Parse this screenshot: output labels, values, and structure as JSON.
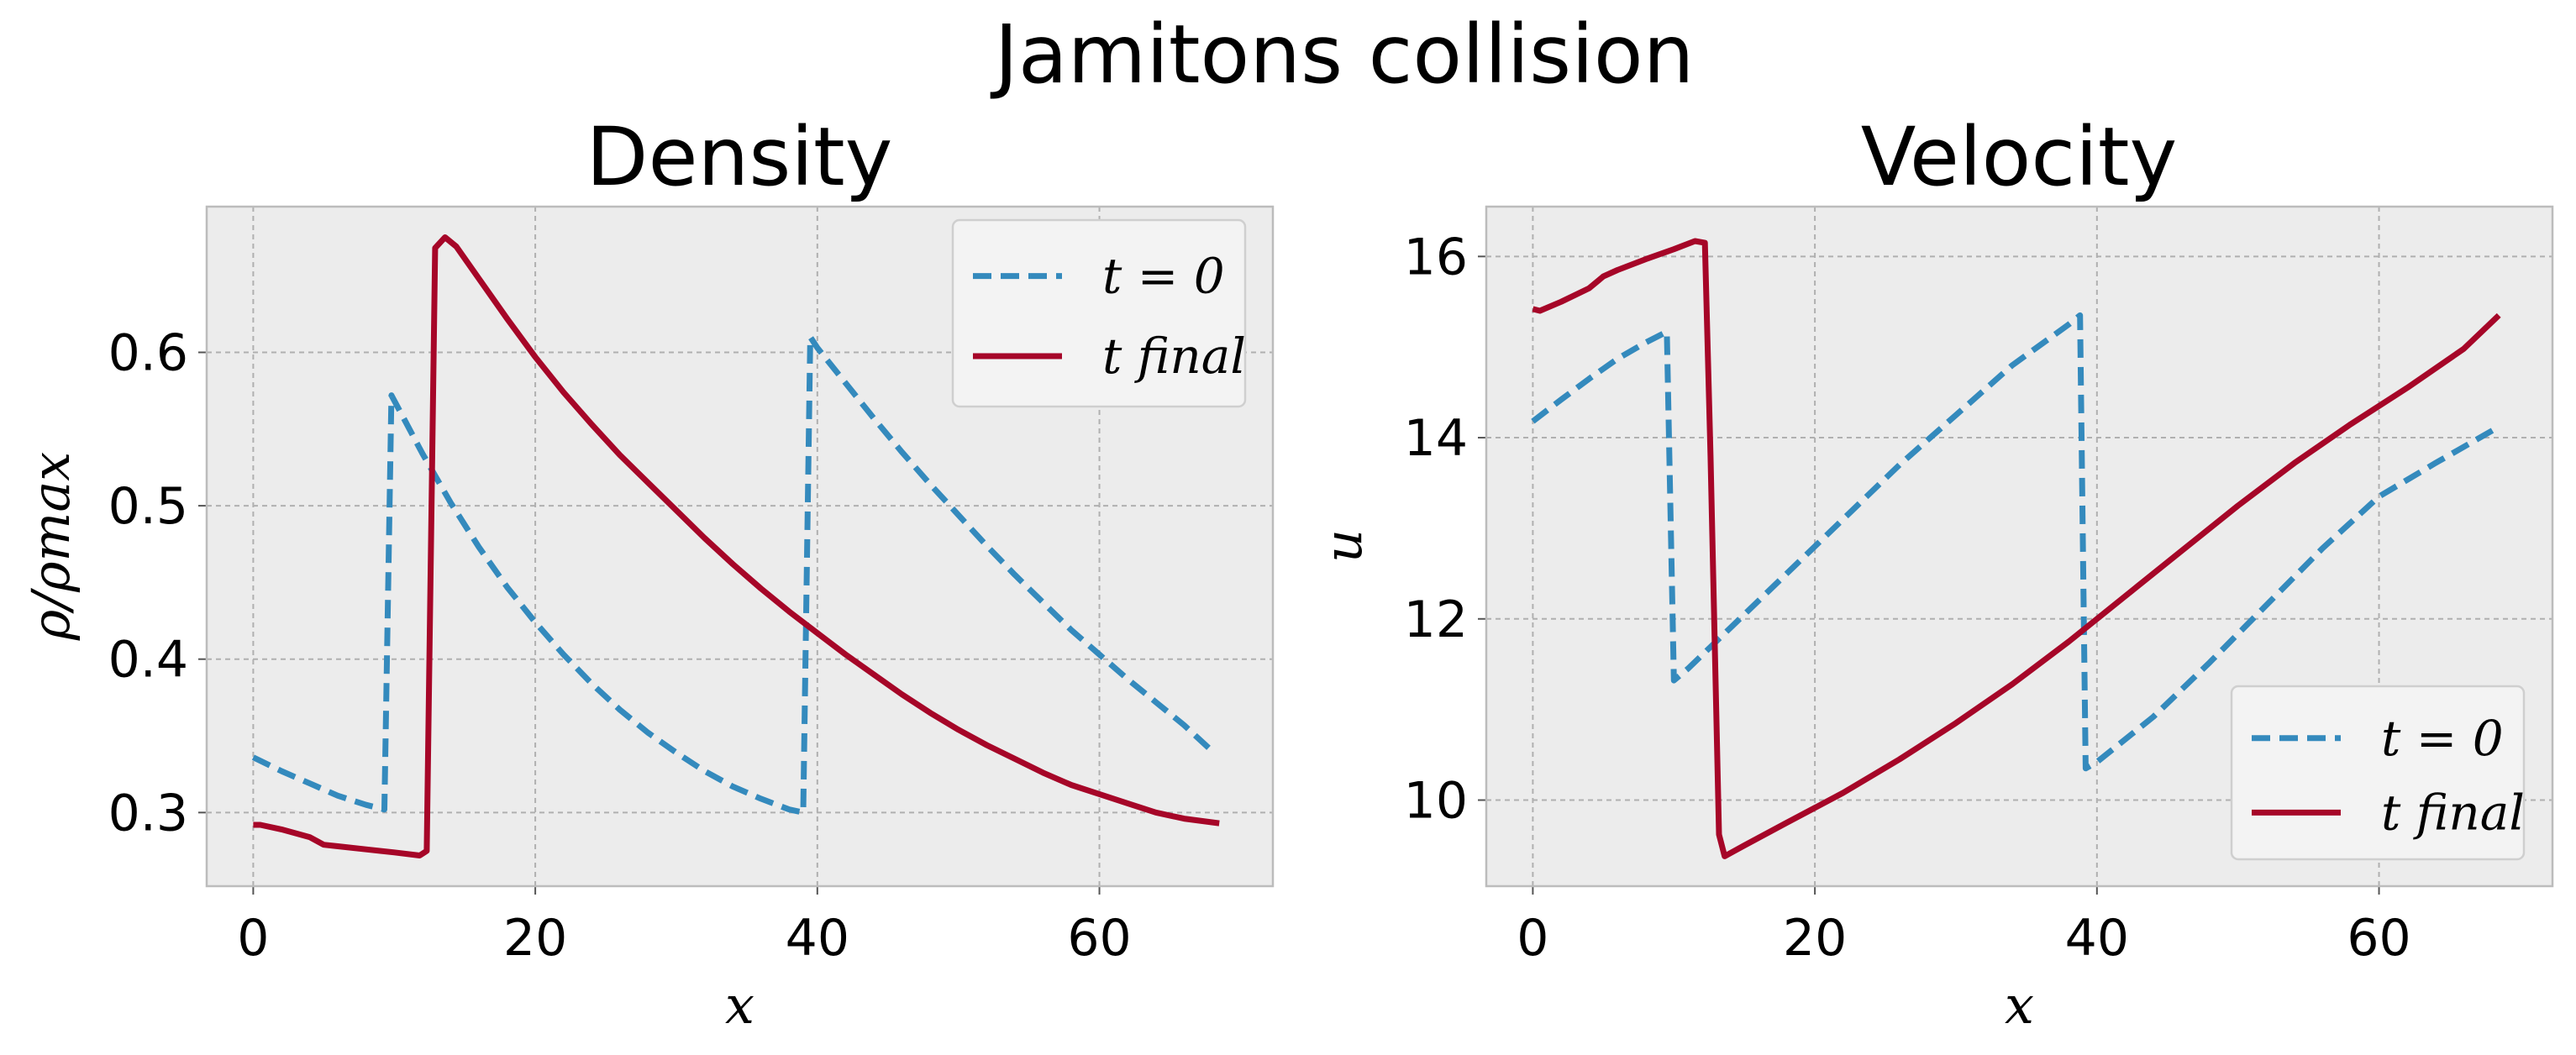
{
  "title": "Jamitons collision",
  "colors": {
    "t0": "#348ABD",
    "tfinal": "#A60628",
    "panel": "#ececec",
    "grid": "#b0b0b0",
    "frame": "#bcbcbc"
  },
  "panels": [
    {
      "title": "Density",
      "xlabel": "x",
      "ylabel": "ρ/ρmax",
      "legend_pos": "upper right",
      "legend": [
        {
          "label": "t = 0",
          "style": "dashed"
        },
        {
          "label": "t final",
          "style": "solid"
        }
      ]
    },
    {
      "title": "Velocity",
      "xlabel": "x",
      "ylabel": "u",
      "legend_pos": "lower right",
      "legend": [
        {
          "label": "t = 0",
          "style": "dashed"
        },
        {
          "label": "t final",
          "style": "solid"
        }
      ]
    }
  ],
  "chart_data": [
    {
      "type": "line",
      "title": "Density",
      "xlabel": "x",
      "ylabel": "ρ/ρmax",
      "xlim": [
        -3.3,
        72.3
      ],
      "ylim": [
        0.252,
        0.695
      ],
      "xticks": [
        0,
        20,
        40,
        60
      ],
      "xtick_labels": [
        "0",
        "20",
        "40",
        "60"
      ],
      "yticks": [
        0.3,
        0.4,
        0.5,
        0.6
      ],
      "ytick_labels": [
        "0.3",
        "0.4",
        "0.5",
        "0.6"
      ],
      "grid": true,
      "legend_position": "upper right",
      "series": [
        {
          "name": "t = 0",
          "style": "dashed",
          "color": "#348ABD",
          "x": [
            0,
            2,
            4,
            6,
            8,
            9.3,
            9.8,
            10.5,
            12,
            14,
            16,
            18,
            20,
            22,
            24,
            26,
            28,
            30,
            32,
            34,
            36,
            38,
            39,
            39.5,
            40,
            42,
            44,
            46,
            48,
            50,
            52,
            54,
            56,
            58,
            60,
            62,
            64,
            66,
            68
          ],
          "y": [
            0.336,
            0.327,
            0.319,
            0.311,
            0.305,
            0.302,
            0.572,
            0.56,
            0.534,
            0.502,
            0.473,
            0.447,
            0.424,
            0.403,
            0.384,
            0.367,
            0.352,
            0.339,
            0.327,
            0.317,
            0.309,
            0.302,
            0.3,
            0.61,
            0.603,
            0.58,
            0.557,
            0.535,
            0.514,
            0.494,
            0.474,
            0.455,
            0.437,
            0.419,
            0.403,
            0.387,
            0.372,
            0.357,
            0.34
          ]
        },
        {
          "name": "t final",
          "style": "solid",
          "color": "#A60628",
          "x": [
            0,
            0.5,
            2,
            4,
            5,
            6,
            8,
            10,
            11.8,
            12.3,
            12.9,
            13.6,
            14.4,
            16,
            18,
            20,
            22,
            24,
            26,
            28,
            30,
            32,
            34,
            36,
            38,
            40,
            42,
            44,
            46,
            48,
            50,
            52,
            54,
            56,
            58,
            60,
            62,
            64,
            66,
            68.5
          ],
          "y": [
            0.292,
            0.292,
            0.289,
            0.284,
            0.279,
            0.278,
            0.276,
            0.274,
            0.272,
            0.275,
            0.668,
            0.675,
            0.669,
            0.648,
            0.622,
            0.597,
            0.574,
            0.553,
            0.533,
            0.515,
            0.497,
            0.479,
            0.462,
            0.446,
            0.431,
            0.417,
            0.403,
            0.39,
            0.377,
            0.365,
            0.354,
            0.344,
            0.335,
            0.326,
            0.318,
            0.312,
            0.306,
            0.3,
            0.296,
            0.293
          ]
        }
      ]
    },
    {
      "type": "line",
      "title": "Velocity",
      "xlabel": "x",
      "ylabel": "u",
      "xlim": [
        -3.3,
        72.3
      ],
      "ylim": [
        9.05,
        16.55
      ],
      "xticks": [
        0,
        20,
        40,
        60
      ],
      "xtick_labels": [
        "0",
        "20",
        "40",
        "60"
      ],
      "yticks": [
        10,
        12,
        14,
        16
      ],
      "yticks_labels_note": "",
      "ytick_labels": [
        "10",
        "12",
        "14",
        "16"
      ],
      "grid": true,
      "legend_position": "lower right",
      "series": [
        {
          "name": "t = 0",
          "style": "dashed",
          "color": "#348ABD",
          "x": [
            0,
            2,
            4,
            6,
            8,
            9.5,
            10.0,
            11,
            14,
            18,
            22,
            26,
            30,
            34,
            38,
            38.8,
            39.2,
            40,
            44,
            48,
            52,
            56,
            60,
            64,
            68.5
          ],
          "y": [
            14.18,
            14.42,
            14.65,
            14.87,
            15.05,
            15.17,
            11.32,
            11.45,
            11.9,
            12.5,
            13.1,
            13.7,
            14.25,
            14.8,
            15.25,
            15.35,
            10.35,
            10.42,
            10.92,
            11.52,
            12.15,
            12.78,
            13.35,
            13.72,
            14.12
          ]
        },
        {
          "name": "t final",
          "style": "solid",
          "color": "#A60628",
          "x": [
            0,
            0.5,
            2,
            4,
            5,
            6,
            8,
            10,
            11.5,
            12.2,
            12.6,
            13.2,
            13.6,
            15,
            18,
            22,
            26,
            30,
            34,
            38,
            42,
            46,
            50,
            54,
            58,
            62,
            66,
            68.5
          ],
          "y": [
            15.42,
            15.4,
            15.5,
            15.65,
            15.78,
            15.85,
            15.97,
            16.08,
            16.17,
            16.15,
            13.8,
            9.62,
            9.38,
            9.5,
            9.75,
            10.08,
            10.45,
            10.85,
            11.28,
            11.75,
            12.25,
            12.75,
            13.25,
            13.72,
            14.15,
            14.55,
            14.98,
            15.35
          ]
        }
      ]
    }
  ]
}
